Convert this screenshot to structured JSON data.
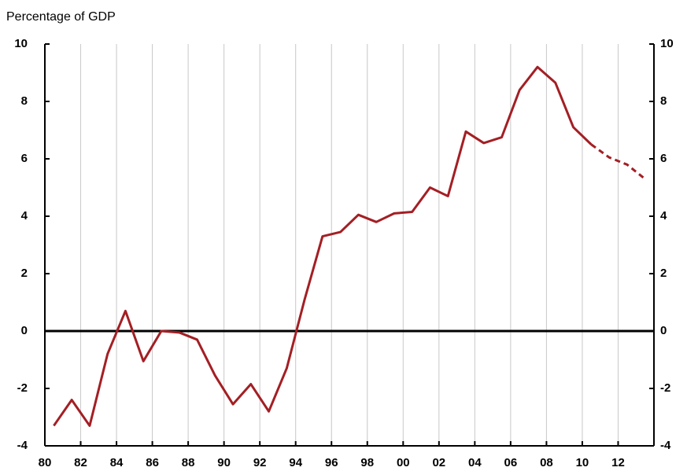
{
  "chart_data": {
    "type": "line",
    "y_label": "Percentage of GDP",
    "x": [
      1980.5,
      1981.5,
      1982.5,
      1983.5,
      1984.5,
      1985.5,
      1986.5,
      1987.5,
      1988.5,
      1989.5,
      1990.5,
      1991.5,
      1992.5,
      1993.5,
      1994.5,
      1995.5,
      1996.5,
      1997.5,
      1998.5,
      1999.5,
      2000.5,
      2001.5,
      2002.5,
      2003.5,
      2004.5,
      2005.5,
      2006.5,
      2007.5,
      2008.5,
      2009.5,
      2010.5,
      2011.5,
      2012.5,
      2013.5
    ],
    "values": [
      -3.3,
      -2.4,
      -3.3,
      -0.8,
      0.7,
      -1.05,
      0.0,
      -0.05,
      -0.3,
      -1.55,
      -2.55,
      -1.85,
      -2.8,
      -1.3,
      1.1,
      3.3,
      3.45,
      4.05,
      3.8,
      4.1,
      4.15,
      5.0,
      4.7,
      6.95,
      6.55,
      6.75,
      8.4,
      9.2,
      8.65,
      7.1,
      6.5,
      6.05,
      5.8,
      5.3
    ],
    "color": "#a31f24",
    "dashed_from_x": 2010.5,
    "xlim": [
      1980,
      2014
    ],
    "xticks": [
      {
        "value": 1980,
        "label": "80"
      },
      {
        "value": 1982,
        "label": "82"
      },
      {
        "value": 1984,
        "label": "84"
      },
      {
        "value": 1986,
        "label": "86"
      },
      {
        "value": 1988,
        "label": "88"
      },
      {
        "value": 1990,
        "label": "90"
      },
      {
        "value": 1992,
        "label": "92"
      },
      {
        "value": 1994,
        "label": "94"
      },
      {
        "value": 1996,
        "label": "96"
      },
      {
        "value": 1998,
        "label": "98"
      },
      {
        "value": 2000,
        "label": "00"
      },
      {
        "value": 2002,
        "label": "02"
      },
      {
        "value": 2004,
        "label": "04"
      },
      {
        "value": 2006,
        "label": "06"
      },
      {
        "value": 2008,
        "label": "08"
      },
      {
        "value": 2010,
        "label": "10"
      },
      {
        "value": 2012,
        "label": "12"
      }
    ],
    "ylim": [
      -4,
      10
    ],
    "yticks": [
      -4,
      -2,
      0,
      2,
      4,
      6,
      8,
      10
    ],
    "y2lim": [
      -4,
      10
    ],
    "y2ticks": [
      -4,
      -2,
      0,
      2,
      4,
      6,
      8,
      10
    ],
    "grid": true
  }
}
